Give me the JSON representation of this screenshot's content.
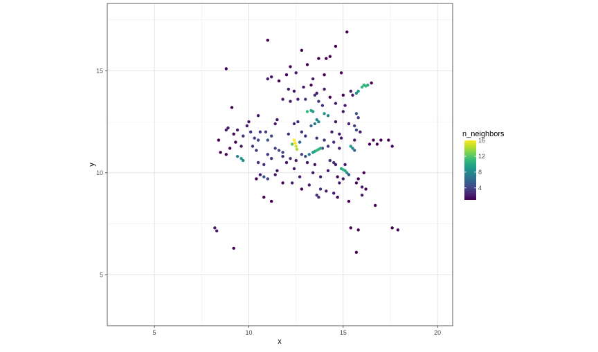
{
  "chart_data": {
    "type": "scatter",
    "title": "",
    "xlabel": "x",
    "ylabel": "y",
    "xlim": [
      2.5,
      20.8
    ],
    "ylim": [
      2.5,
      18.3
    ],
    "x_ticks": [
      5,
      10,
      15,
      20
    ],
    "y_ticks": [
      5,
      10,
      15
    ],
    "x_tick_labels": [
      "5",
      "10",
      "15",
      "20"
    ],
    "y_tick_labels": [
      "5",
      "10",
      "15"
    ],
    "grid": true,
    "theme": "bw",
    "legend": {
      "title": "n_neighbors",
      "placement": "right",
      "min": 1,
      "max": 16,
      "breaks": [
        4,
        8,
        12,
        16
      ],
      "break_labels": [
        "4",
        "8",
        "12",
        "16"
      ]
    },
    "color_scale": {
      "name": "viridis",
      "stops": [
        "#440154",
        "#482878",
        "#3e4a89",
        "#31688e",
        "#26828e",
        "#1f9e89",
        "#35b779",
        "#6ece58",
        "#b5de2b",
        "#fde725"
      ]
    },
    "points": [
      [
        15.2,
        16.9,
        1
      ],
      [
        11.0,
        16.5,
        1
      ],
      [
        12.8,
        16.0,
        1
      ],
      [
        14.6,
        16.2,
        1
      ],
      [
        13.7,
        15.6,
        1
      ],
      [
        14.3,
        15.7,
        1
      ],
      [
        12.2,
        15.2,
        1
      ],
      [
        13.1,
        15.3,
        1
      ],
      [
        14.1,
        15.6,
        1
      ],
      [
        8.8,
        15.1,
        1
      ],
      [
        11.2,
        14.7,
        2
      ],
      [
        11.0,
        14.6,
        2
      ],
      [
        12.5,
        14.9,
        2
      ],
      [
        12.0,
        14.8,
        1
      ],
      [
        13.4,
        14.6,
        2
      ],
      [
        14.0,
        14.8,
        1
      ],
      [
        14.9,
        14.9,
        1
      ],
      [
        11.6,
        14.5,
        1
      ],
      [
        16.5,
        14.4,
        1
      ],
      [
        16.0,
        14.2,
        11
      ],
      [
        16.1,
        14.3,
        11
      ],
      [
        16.2,
        14.25,
        11
      ],
      [
        16.3,
        14.3,
        10
      ],
      [
        15.8,
        14.0,
        9
      ],
      [
        15.7,
        13.9,
        8
      ],
      [
        12.1,
        14.1,
        2
      ],
      [
        12.4,
        14.0,
        2
      ],
      [
        12.9,
        14.2,
        2
      ],
      [
        13.3,
        14.3,
        1
      ],
      [
        14.0,
        14.1,
        2
      ],
      [
        15.4,
        14.0,
        2
      ],
      [
        15.0,
        13.8,
        1
      ],
      [
        15.5,
        13.8,
        2
      ],
      [
        13.6,
        13.9,
        2
      ],
      [
        14.3,
        13.7,
        1
      ],
      [
        11.8,
        13.6,
        2
      ],
      [
        12.2,
        13.5,
        2
      ],
      [
        12.6,
        13.6,
        2
      ],
      [
        13.0,
        13.6,
        3
      ],
      [
        13.5,
        13.8,
        3
      ],
      [
        13.7,
        13.5,
        3
      ],
      [
        13.9,
        13.3,
        3
      ],
      [
        14.6,
        13.4,
        2
      ],
      [
        15.1,
        13.3,
        2
      ],
      [
        9.1,
        13.2,
        1
      ],
      [
        13.1,
        13.0,
        11
      ],
      [
        13.3,
        13.05,
        10
      ],
      [
        13.4,
        13.0,
        9
      ],
      [
        14.0,
        12.9,
        9
      ],
      [
        14.2,
        12.8,
        8
      ],
      [
        15.0,
        13.0,
        2
      ],
      [
        15.7,
        12.9,
        5
      ],
      [
        15.8,
        12.7,
        4
      ],
      [
        10.5,
        12.8,
        2
      ],
      [
        13.6,
        12.6,
        8
      ],
      [
        13.7,
        12.5,
        8
      ],
      [
        13.5,
        12.4,
        7
      ],
      [
        13.3,
        12.3,
        6
      ],
      [
        12.6,
        12.5,
        3
      ],
      [
        12.4,
        12.4,
        3
      ],
      [
        11.5,
        12.6,
        2
      ],
      [
        11.4,
        12.4,
        2
      ],
      [
        10.0,
        12.5,
        2
      ],
      [
        9.9,
        12.3,
        2
      ],
      [
        14.6,
        12.5,
        2
      ],
      [
        15.3,
        12.4,
        2
      ],
      [
        15.6,
        12.3,
        4
      ],
      [
        15.7,
        12.1,
        4
      ],
      [
        15.9,
        12.0,
        2
      ],
      [
        8.8,
        12.1,
        2
      ],
      [
        8.9,
        12.2,
        2
      ],
      [
        9.4,
        12.1,
        2
      ],
      [
        10.1,
        12.0,
        3
      ],
      [
        10.6,
        12.0,
        3
      ],
      [
        10.9,
        12.0,
        4
      ],
      [
        11.2,
        11.8,
        4
      ],
      [
        12.1,
        11.9,
        3
      ],
      [
        12.8,
        12.0,
        3
      ],
      [
        13.0,
        11.8,
        3
      ],
      [
        14.4,
        12.0,
        2
      ],
      [
        14.8,
        11.9,
        2
      ],
      [
        14.9,
        11.7,
        2
      ],
      [
        9.2,
        11.9,
        1
      ],
      [
        9.7,
        11.8,
        3
      ],
      [
        10.3,
        11.7,
        4
      ],
      [
        10.5,
        11.6,
        4
      ],
      [
        11.0,
        11.6,
        5
      ],
      [
        12.4,
        11.6,
        16
      ],
      [
        12.45,
        11.45,
        16
      ],
      [
        12.5,
        11.3,
        15
      ],
      [
        12.55,
        11.15,
        14
      ],
      [
        12.3,
        11.4,
        12
      ],
      [
        12.7,
        11.5,
        6
      ],
      [
        13.6,
        11.7,
        3
      ],
      [
        14.0,
        11.6,
        3
      ],
      [
        14.5,
        11.5,
        3
      ],
      [
        15.6,
        11.6,
        2
      ],
      [
        16.6,
        11.6,
        1
      ],
      [
        8.4,
        11.6,
        1
      ],
      [
        9.3,
        11.5,
        1
      ],
      [
        17.0,
        11.6,
        1
      ],
      [
        17.4,
        11.6,
        1
      ],
      [
        16.8,
        11.4,
        1
      ],
      [
        16.4,
        11.4,
        1
      ],
      [
        17.6,
        11.3,
        1
      ],
      [
        9.0,
        11.2,
        1
      ],
      [
        9.6,
        11.3,
        2
      ],
      [
        10.2,
        11.3,
        3
      ],
      [
        10.4,
        11.1,
        3
      ],
      [
        11.4,
        11.2,
        4
      ],
      [
        11.6,
        11.1,
        4
      ],
      [
        11.8,
        11.0,
        4
      ],
      [
        13.9,
        11.2,
        4
      ],
      [
        14.2,
        11.3,
        3
      ],
      [
        14.8,
        11.2,
        2
      ],
      [
        15.4,
        11.3,
        9
      ],
      [
        15.5,
        11.2,
        8
      ],
      [
        15.6,
        11.1,
        6
      ],
      [
        8.5,
        11.0,
        1
      ],
      [
        8.8,
        10.9,
        1
      ],
      [
        13.6,
        11.1,
        11
      ],
      [
        13.7,
        11.15,
        11
      ],
      [
        13.8,
        11.2,
        10
      ],
      [
        13.5,
        11.05,
        10
      ],
      [
        13.4,
        11.0,
        9
      ],
      [
        13.2,
        10.9,
        7
      ],
      [
        13.0,
        10.8,
        5
      ],
      [
        12.8,
        10.9,
        4
      ],
      [
        11.0,
        10.9,
        3
      ],
      [
        11.2,
        10.7,
        3
      ],
      [
        11.8,
        10.8,
        3
      ],
      [
        12.2,
        10.7,
        3
      ],
      [
        9.4,
        10.8,
        8
      ],
      [
        9.6,
        10.7,
        9
      ],
      [
        9.7,
        10.6,
        8
      ],
      [
        10.5,
        10.5,
        3
      ],
      [
        10.8,
        10.4,
        3
      ],
      [
        12.0,
        10.5,
        2
      ],
      [
        12.5,
        10.6,
        2
      ],
      [
        13.1,
        10.5,
        2
      ],
      [
        13.5,
        10.4,
        2
      ],
      [
        14.3,
        10.6,
        3
      ],
      [
        14.5,
        10.5,
        3
      ],
      [
        14.6,
        10.4,
        2
      ],
      [
        15.1,
        10.4,
        2
      ],
      [
        14.9,
        10.2,
        10
      ],
      [
        15.0,
        10.15,
        11
      ],
      [
        15.1,
        10.1,
        10
      ],
      [
        15.2,
        10.0,
        8
      ],
      [
        15.3,
        9.9,
        5
      ],
      [
        14.2,
        10.1,
        2
      ],
      [
        11.5,
        10.1,
        2
      ],
      [
        12.4,
        10.2,
        2
      ],
      [
        13.4,
        10.0,
        2
      ],
      [
        16.1,
        10.0,
        1
      ],
      [
        10.6,
        9.9,
        2
      ],
      [
        10.8,
        9.8,
        5
      ],
      [
        11.0,
        9.7,
        4
      ],
      [
        10.4,
        9.7,
        1
      ],
      [
        11.4,
        9.9,
        2
      ],
      [
        12.7,
        9.8,
        2
      ],
      [
        13.8,
        9.8,
        2
      ],
      [
        14.7,
        9.8,
        1
      ],
      [
        15.0,
        9.7,
        2
      ],
      [
        15.8,
        9.7,
        1
      ],
      [
        11.8,
        9.5,
        1
      ],
      [
        12.3,
        9.5,
        2
      ],
      [
        13.2,
        9.4,
        2
      ],
      [
        14.8,
        9.5,
        2
      ],
      [
        15.7,
        9.5,
        1
      ],
      [
        16.0,
        9.3,
        2
      ],
      [
        12.8,
        9.2,
        1
      ],
      [
        13.8,
        9.2,
        3
      ],
      [
        14.1,
        9.1,
        2
      ],
      [
        14.5,
        9.0,
        2
      ],
      [
        16.2,
        9.2,
        1
      ],
      [
        13.6,
        8.9,
        3
      ],
      [
        13.7,
        8.8,
        3
      ],
      [
        14.7,
        8.8,
        1
      ],
      [
        15.3,
        8.6,
        1
      ],
      [
        16.0,
        8.9,
        2
      ],
      [
        10.8,
        8.8,
        1
      ],
      [
        11.2,
        8.6,
        1
      ],
      [
        16.7,
        8.4,
        1
      ],
      [
        8.2,
        7.3,
        2
      ],
      [
        8.3,
        7.15,
        2
      ],
      [
        15.4,
        7.3,
        1
      ],
      [
        15.8,
        7.2,
        1
      ],
      [
        17.6,
        7.3,
        1
      ],
      [
        17.9,
        7.2,
        1
      ],
      [
        9.2,
        6.3,
        1
      ],
      [
        15.7,
        6.1,
        1
      ]
    ]
  }
}
